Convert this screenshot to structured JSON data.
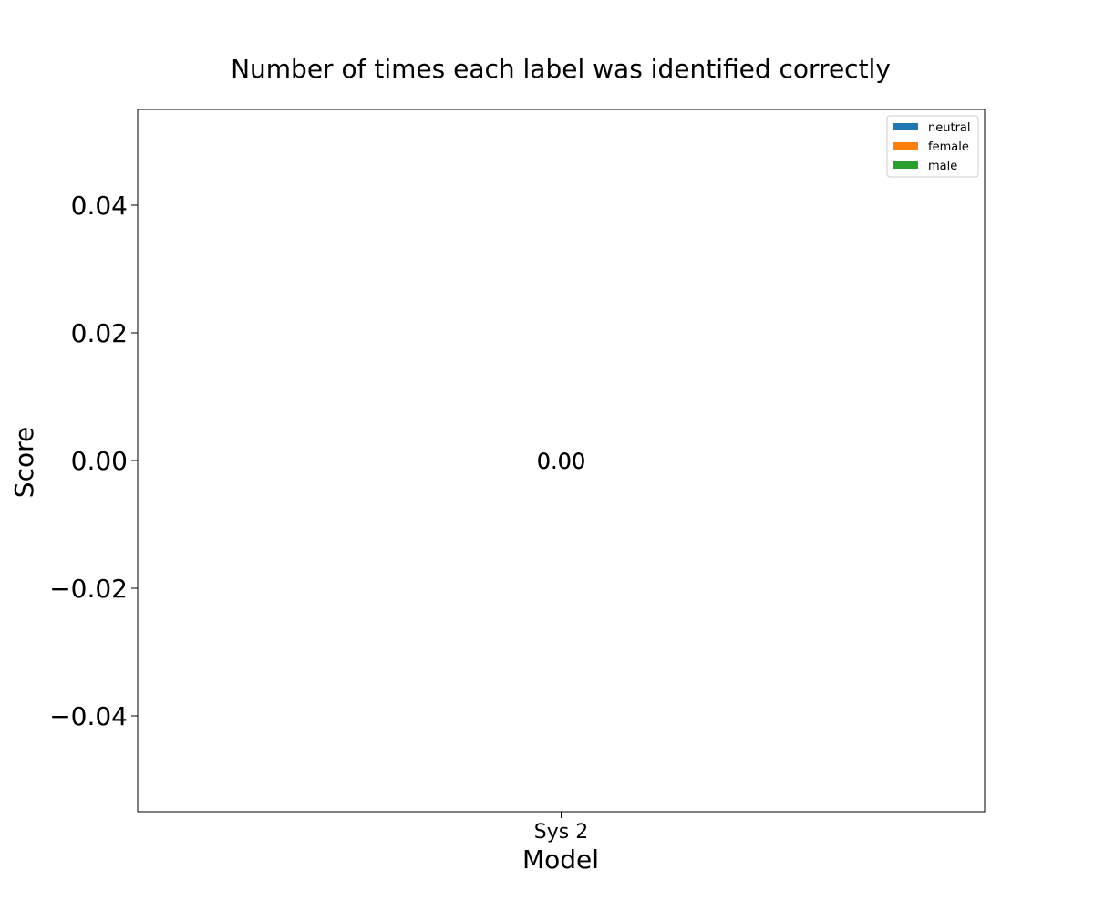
{
  "chart_data": {
    "type": "bar",
    "title": "Number of times each label was identified correctly",
    "xlabel": "Model",
    "ylabel": "Score",
    "categories": [
      "Sys 2"
    ],
    "series": [
      {
        "name": "neutral",
        "color": "#1f77b4",
        "values": [
          0
        ]
      },
      {
        "name": "female",
        "color": "#ff7f0e",
        "values": [
          0
        ]
      },
      {
        "name": "male",
        "color": "#2ca02c",
        "values": [
          0
        ]
      }
    ],
    "data_labels": [
      "0.00",
      "0.00",
      "0.00"
    ],
    "ylim": [
      -0.055,
      0.055
    ],
    "yticks": [
      -0.04,
      -0.02,
      0.0,
      0.02,
      0.04
    ],
    "ytick_labels": [
      "−0.04",
      "−0.02",
      "0.00",
      "0.02",
      "0.04"
    ],
    "grid": false,
    "legend_position": "top-right"
  }
}
